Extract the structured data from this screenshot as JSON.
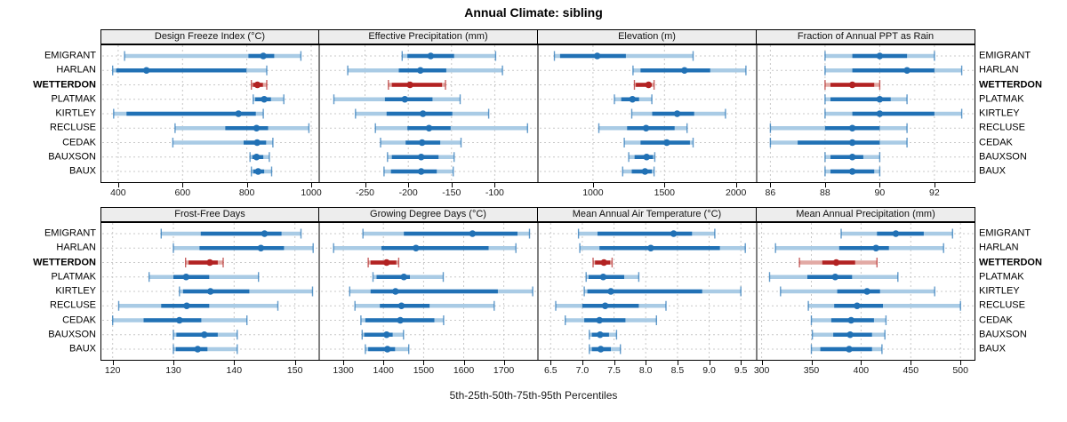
{
  "title": "Annual Climate: sibling",
  "footer": "5th-25th-50th-75th-95th Percentiles",
  "highlight_site": "WETTERDON",
  "colors": {
    "main": "#2171B5",
    "band": "#A9CBE5",
    "highlight": "#B22222",
    "highlight_band": "#E2A9A4",
    "grid": "#C8C8C8",
    "strip_bg": "#EDEDED",
    "border": "#000000"
  },
  "chart_data": {
    "type": "dot-interval percentile trellis (2x4 panels)",
    "percentiles": [
      "5th",
      "25th",
      "50th",
      "75th",
      "95th"
    ],
    "sites": [
      "EMIGRANT",
      "HARLAN",
      "WETTERDON",
      "PLATMAK",
      "KIRTLEY",
      "RECLUSE",
      "CEDAK",
      "BAUXSON",
      "BAUX"
    ],
    "panels": [
      {
        "title": "Design Freeze Index (°C)",
        "row": 1,
        "xlim": [
          345,
          1025
        ],
        "ticks": [
          400,
          600,
          800,
          1000
        ],
        "tick_labels": [
          "400",
          "600",
          "800",
          "1000"
        ],
        "values": {
          "EMIGRANT": [
            420,
            805,
            851,
            885,
            968
          ],
          "HARLAN": [
            383,
            394,
            488,
            799,
            862
          ],
          "WETTERDON": [
            814,
            819,
            833,
            850,
            862
          ],
          "PLATMAK": [
            820,
            826,
            854,
            875,
            915
          ],
          "KIRTLEY": [
            386,
            426,
            774,
            828,
            851
          ],
          "RECLUSE": [
            577,
            733,
            830,
            866,
            993
          ],
          "CEDAK": [
            570,
            790,
            832,
            860,
            881
          ],
          "BAUXSON": [
            810,
            817,
            830,
            851,
            870
          ],
          "BAUX": [
            814,
            820,
            835,
            854,
            877
          ]
        }
      },
      {
        "title": "Effective Precipitation (mm)",
        "row": 1,
        "xlim": [
          -303,
          -50
        ],
        "ticks": [
          -250,
          -200,
          -150,
          -100
        ],
        "tick_labels": [
          "-250",
          "-200",
          "-150",
          "-100"
        ],
        "values": {
          "EMIGRANT": [
            -207,
            -201,
            -174,
            -147,
            -99
          ],
          "HARLAN": [
            -270,
            -211,
            -186,
            -156,
            -91
          ],
          "WETTERDON": [
            -223,
            -219,
            -198,
            -161,
            -157
          ],
          "PLATMAK": [
            -286,
            -227,
            -204,
            -172,
            -140
          ],
          "KIRTLEY": [
            -261,
            -225,
            -183,
            -149,
            -107
          ],
          "RECLUSE": [
            -238,
            -201,
            -176,
            -151,
            -62
          ],
          "CEDAK": [
            -232,
            -203,
            -184,
            -163,
            -139
          ],
          "BAUXSON": [
            -224,
            -219,
            -185,
            -165,
            -147
          ],
          "BAUX": [
            -228,
            -220,
            -185,
            -167,
            -148
          ]
        }
      },
      {
        "title": "Elevation (m)",
        "row": 1,
        "xlim": [
          615,
          2145
        ],
        "ticks": [
          1000,
          1500,
          2000
        ],
        "tick_labels": [
          "1000",
          "1500",
          "2000"
        ],
        "values": {
          "EMIGRANT": [
            730,
            770,
            1030,
            1230,
            1700
          ],
          "HARLAN": [
            1280,
            1333,
            1640,
            1820,
            2070
          ],
          "WETTERDON": [
            1290,
            1300,
            1389,
            1405,
            1427
          ],
          "PLATMAK": [
            1150,
            1198,
            1276,
            1322,
            1412
          ],
          "KIRTLEY": [
            1271,
            1414,
            1589,
            1708,
            1927
          ],
          "RECLUSE": [
            1041,
            1239,
            1371,
            1571,
            1658
          ],
          "CEDAK": [
            1219,
            1333,
            1516,
            1678,
            1700
          ],
          "BAUXSON": [
            1250,
            1291,
            1375,
            1420,
            1432
          ],
          "BAUX": [
            1208,
            1271,
            1364,
            1412,
            1427
          ]
        }
      },
      {
        "title": "Fraction of Annual PPT as Rain",
        "row": 1,
        "xlim": [
          85.5,
          93.5
        ],
        "ticks": [
          86,
          88,
          90,
          92
        ],
        "tick_labels": [
          "86",
          "88",
          "90",
          "92"
        ],
        "values": {
          "EMIGRANT": [
            88,
            89,
            90,
            91,
            92
          ],
          "HARLAN": [
            88,
            89,
            91,
            92,
            93
          ],
          "WETTERDON": [
            88,
            88.2,
            89,
            89.8,
            90
          ],
          "PLATMAK": [
            88,
            88.2,
            90,
            90.4,
            91
          ],
          "KIRTLEY": [
            88,
            89,
            90,
            92,
            93
          ],
          "RECLUSE": [
            86,
            88,
            89,
            90,
            91
          ],
          "CEDAK": [
            86,
            87,
            89,
            90,
            91
          ],
          "BAUXSON": [
            88,
            88.2,
            89,
            89.4,
            90
          ],
          "BAUX": [
            88,
            88.2,
            89,
            89.8,
            90
          ]
        }
      },
      {
        "title": "Frost-Free Days",
        "row": 2,
        "xlim": [
          118,
          154
        ],
        "ticks": [
          120,
          130,
          140,
          150
        ],
        "tick_labels": [
          "120",
          "130",
          "140",
          "150"
        ],
        "values": {
          "EMIGRANT": [
            128,
            134.5,
            145,
            147.8,
            151
          ],
          "HARLAN": [
            130,
            134.3,
            144.4,
            148.2,
            153
          ],
          "WETTERDON": [
            132,
            132.5,
            136,
            137.3,
            138.2
          ],
          "PLATMAK": [
            126,
            130,
            132.1,
            135.9,
            144
          ],
          "KIRTLEY": [
            131,
            131.6,
            136.1,
            142.5,
            152.9
          ],
          "RECLUSE": [
            121,
            128,
            132.2,
            135.9,
            147.2
          ],
          "CEDAK": [
            120,
            125.1,
            131,
            134.6,
            142.1
          ],
          "BAUXSON": [
            130,
            130.5,
            135.1,
            137.3,
            140.5
          ],
          "BAUX": [
            130,
            130.4,
            134,
            135.6,
            140.5
          ]
        }
      },
      {
        "title": "Growing Degree Days (°C)",
        "row": 2,
        "xlim": [
          1240,
          1785
        ],
        "ticks": [
          1300,
          1400,
          1500,
          1600,
          1700
        ],
        "tick_labels": [
          "1300",
          "1400",
          "1500",
          "1600",
          "1700"
        ],
        "values": {
          "EMIGRANT": [
            1349,
            1451,
            1622,
            1734,
            1764
          ],
          "HARLAN": [
            1276,
            1395,
            1481,
            1662,
            1730
          ],
          "WETTERDON": [
            1362,
            1368,
            1408,
            1432,
            1438
          ],
          "PLATMAK": [
            1374,
            1383,
            1451,
            1466,
            1549
          ],
          "KIRTLEY": [
            1316,
            1368,
            1430,
            1685,
            1772
          ],
          "RECLUSE": [
            1329,
            1391,
            1445,
            1515,
            1676
          ],
          "CEDAK": [
            1344,
            1355,
            1442,
            1527,
            1550
          ],
          "BAUXSON": [
            1347,
            1352,
            1408,
            1423,
            1450
          ],
          "BAUX": [
            1355,
            1362,
            1410,
            1429,
            1463
          ]
        }
      },
      {
        "title": "Mean Annual Air Temperature (°C)",
        "row": 2,
        "xlim": [
          6.3,
          9.75
        ],
        "ticks": [
          6.5,
          7.0,
          7.5,
          8.0,
          8.5,
          9.0,
          9.5
        ],
        "tick_labels": [
          "6.5",
          "7.0",
          "7.5",
          "8.0",
          "8.5",
          "9.0",
          "9.5"
        ],
        "values": {
          "EMIGRANT": [
            6.94,
            7.24,
            8.44,
            8.73,
            9.09
          ],
          "HARLAN": [
            6.96,
            7.27,
            8.08,
            9.17,
            9.57
          ],
          "WETTERDON": [
            7.17,
            7.2,
            7.34,
            7.44,
            7.47
          ],
          "PLATMAK": [
            7.06,
            7.1,
            7.33,
            7.66,
            7.89
          ],
          "KIRTLEY": [
            7.03,
            7.08,
            7.45,
            8.89,
            9.5
          ],
          "RECLUSE": [
            6.58,
            7.0,
            7.36,
            7.89,
            8.32
          ],
          "CEDAK": [
            6.73,
            7.03,
            7.27,
            7.68,
            8.17
          ],
          "BAUXSON": [
            7.11,
            7.15,
            7.28,
            7.42,
            7.54
          ],
          "BAUX": [
            7.11,
            7.15,
            7.29,
            7.45,
            7.6
          ]
        }
      },
      {
        "title": "Mean Annual Precipitation (mm)",
        "row": 2,
        "xlim": [
          295,
          515
        ],
        "ticks": [
          300,
          350,
          400,
          450,
          500
        ],
        "tick_labels": [
          "300",
          "350",
          "400",
          "450",
          "500"
        ],
        "values": {
          "EMIGRANT": [
            380,
            416,
            435,
            463,
            492
          ],
          "HARLAN": [
            314,
            378,
            415,
            428,
            483
          ],
          "WETTERDON": [
            338,
            361,
            375,
            394,
            416
          ],
          "PLATMAK": [
            308,
            346,
            374,
            391,
            437
          ],
          "KIRTLEY": [
            319,
            376,
            406,
            419,
            474
          ],
          "RECLUSE": [
            347,
            373,
            396,
            422,
            500
          ],
          "CEDAK": [
            350,
            370,
            390,
            413,
            425
          ],
          "BAUXSON": [
            351,
            372,
            389,
            411,
            424
          ],
          "BAUX": [
            350,
            359,
            388,
            411,
            421
          ]
        }
      }
    ]
  }
}
